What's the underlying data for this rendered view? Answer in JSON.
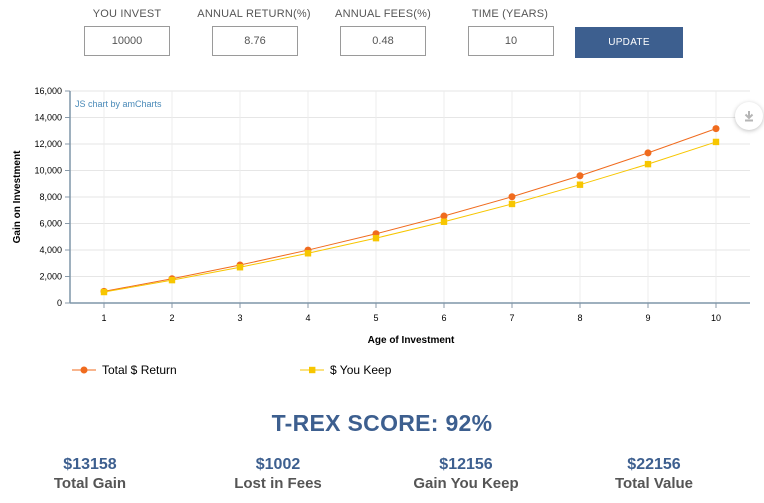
{
  "form": {
    "invest_label": "YOU INVEST",
    "invest_value": "10000",
    "return_label": "ANNUAL RETURN(%)",
    "return_value": "8.76",
    "fees_label": "ANNUAL FEES(%)",
    "fees_value": "0.48",
    "time_label": "TIME (YEARS)",
    "time_value": "10",
    "update_label": "UPDATE"
  },
  "credit": "JS chart by amCharts",
  "download_icon": "download-icon",
  "chart_data": {
    "type": "line",
    "xlabel": "Age of Investment",
    "ylabel": "Gain on Investment",
    "x": [
      1,
      2,
      3,
      4,
      5,
      6,
      7,
      8,
      9,
      10
    ],
    "ylim": [
      0,
      16000
    ],
    "yticks": [
      0,
      2000,
      4000,
      6000,
      8000,
      10000,
      12000,
      14000,
      16000
    ],
    "ytick_labels": [
      "0",
      "2,000",
      "4,000",
      "6,000",
      "8,000",
      "10,000",
      "12,000",
      "14,000",
      "16,000"
    ],
    "grid": true,
    "legend_position": "bottom-left",
    "series": [
      {
        "name": "Total $ Return",
        "color": "#f06b1e",
        "marker": "circle",
        "values": [
          876,
          1829,
          2866,
          3995,
          5225,
          6563,
          8019,
          9605,
          11330,
          13158
        ]
      },
      {
        "name": "$ You Keep",
        "color": "#f7c600",
        "marker": "square",
        "values": [
          828,
          1726,
          2698,
          3752,
          4894,
          6132,
          7474,
          8928,
          10480,
          12156
        ]
      }
    ]
  },
  "score_text": "T-REX SCORE: 92%",
  "stats": [
    {
      "value": "$13158",
      "label": "Total Gain"
    },
    {
      "value": "$1002",
      "label": "Lost in Fees"
    },
    {
      "value": "$12156",
      "label": "Gain You Keep"
    },
    {
      "value": "$22156",
      "label": "Total Value"
    }
  ]
}
